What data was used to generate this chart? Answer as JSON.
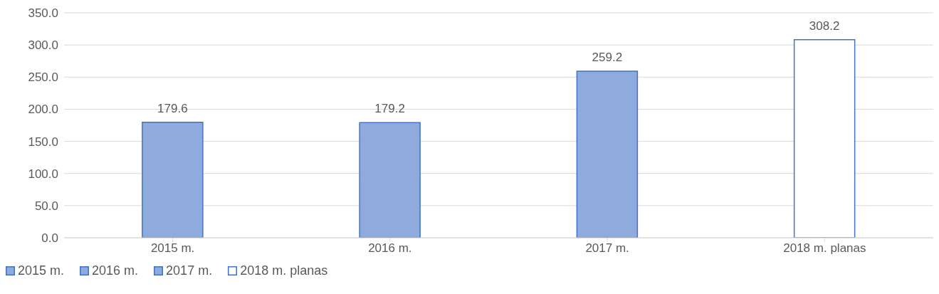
{
  "chart_data": {
    "type": "bar",
    "categories": [
      "2015 m.",
      "2016 m.",
      "2017 m.",
      "2018 m. planas"
    ],
    "series": [
      {
        "name": "2015 m.",
        "color": "#8faadc",
        "values": [
          179.6,
          null,
          null,
          null
        ]
      },
      {
        "name": "2016 m.",
        "color": "#8faadc",
        "values": [
          null,
          179.2,
          null,
          null
        ]
      },
      {
        "name": "2017 m.",
        "color": "#8faadc",
        "values": [
          null,
          null,
          259.2,
          null
        ]
      },
      {
        "name": "2018 m. planas",
        "color": "#ffffff",
        "values": [
          null,
          null,
          null,
          308.2
        ]
      }
    ],
    "stacked": true,
    "ylim": [
      0,
      350
    ],
    "yticks": [
      {
        "value": 0,
        "label": "0.0"
      },
      {
        "value": 50,
        "label": "50.0"
      },
      {
        "value": 100,
        "label": "100.0"
      },
      {
        "value": 150,
        "label": "150.0"
      },
      {
        "value": 200,
        "label": "200.0"
      },
      {
        "value": 250,
        "label": "250.0"
      },
      {
        "value": 300,
        "label": "300.0"
      },
      {
        "value": 350,
        "label": "350.0"
      }
    ],
    "grid": "y",
    "data_labels": true,
    "legend": "bottom"
  }
}
